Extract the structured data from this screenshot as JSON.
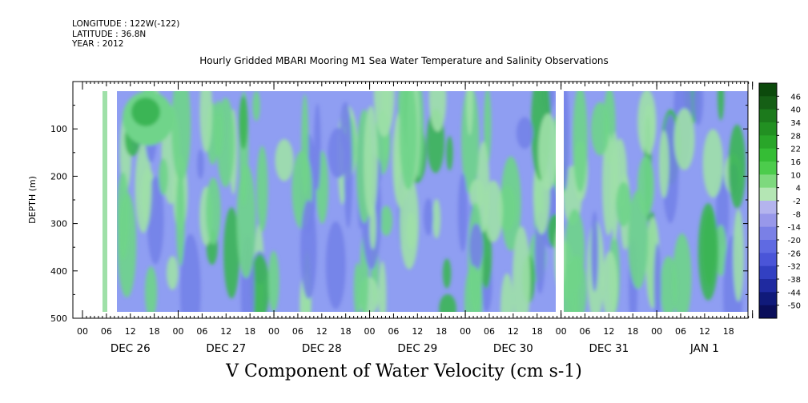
{
  "meta": {
    "longitude": "LONGITUDE : 122W(-122)",
    "latitude": "LATITUDE : 36.8N",
    "year": "YEAR : 2012"
  },
  "title": "Hourly Gridded MBARI Mooring M1 Sea Water Temperature and Salinity Observations",
  "x_title": "V Component of Water Velocity (cm s-1)",
  "chart_data": {
    "type": "heatmap",
    "title": "Hourly Gridded MBARI Mooring M1 Sea Water Temperature and Salinity Observations",
    "xlabel": "V Component of Water Velocity (cm s-1)",
    "ylabel": "DEPTH (m)",
    "y_range": [
      0,
      500
    ],
    "y_ticks": [
      100,
      200,
      300,
      400,
      500
    ],
    "x_range_hours": [
      0,
      168
    ],
    "hour_tick_labels": [
      "00",
      "06",
      "12",
      "18",
      "00",
      "06",
      "12",
      "18",
      "00",
      "06",
      "12",
      "18",
      "00",
      "06",
      "12",
      "18",
      "00",
      "06",
      "12",
      "18",
      "00",
      "06",
      "12",
      "18",
      "00",
      "06",
      "12",
      "18"
    ],
    "day_labels": [
      "DEC 26",
      "DEC 27",
      "DEC 28",
      "DEC 29",
      "DEC 30",
      "DEC 31",
      "JAN  1"
    ],
    "colorbar_levels": [
      "46",
      "40",
      "34",
      "28",
      "22",
      "16",
      "10",
      "4",
      "-2",
      "-8",
      "-14",
      "-20",
      "-26",
      "-32",
      "-38",
      "-44",
      "-50"
    ],
    "colorbar_colors": [
      "#0c4a0c",
      "#155f15",
      "#1c7a1c",
      "#229022",
      "#29a629",
      "#35bd35",
      "#4ccc4c",
      "#7ed97e",
      "#b4e6b4",
      "#b4b4ee",
      "#9898ea",
      "#7a80e6",
      "#5f6ae2",
      "#4a55d8",
      "#3240c2",
      "#1f2aa0",
      "#101a7a",
      "#0a0e5a"
    ],
    "field_colors": {
      "background": "#8f9ef2",
      "strong_negative": "#7482e8",
      "weak_positive": "#9fe0a8",
      "positive": "#6fd48a",
      "strong_positive": "#3bb554"
    }
  }
}
